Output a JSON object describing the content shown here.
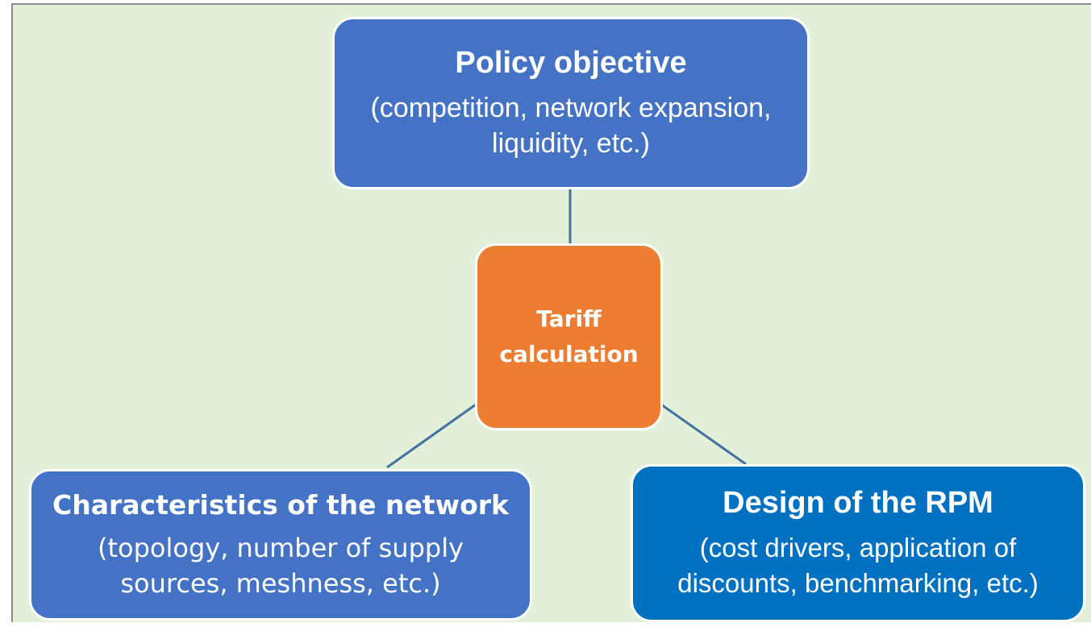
{
  "nodes": [
    {
      "title": "Policy objective",
      "text": [
        "(competition, network expansion,",
        "liquidity, etc.)"
      ]
    },
    {
      "title": [
        "Tariff",
        "calculation"
      ]
    },
    {
      "title": "Characteristics of the network",
      "text": [
        "(topology, number of supply",
        "sources, meshness, etc.)"
      ]
    },
    {
      "title": "Design of the RPM",
      "text": [
        "(cost drivers, application of",
        "discounts, benchmarking, etc.)"
      ]
    }
  ]
}
